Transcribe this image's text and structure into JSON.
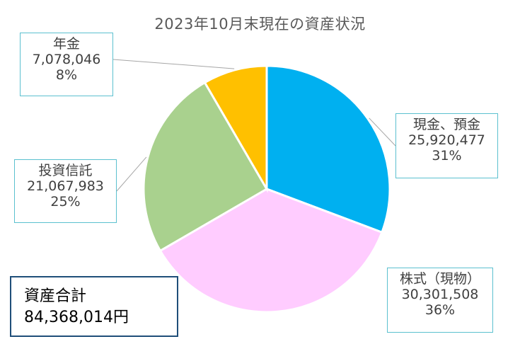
{
  "chart_data": {
    "type": "pie",
    "title": "2023年10月末現在の資産状況",
    "slices": [
      {
        "label": "現金、預金",
        "value": 25920477,
        "value_text": "25,920,477",
        "percent": "31%",
        "color": "#00b0f0"
      },
      {
        "label": "株式（現物）",
        "value": 30301508,
        "value_text": "30,301,508",
        "percent": "36%",
        "color": "#ffccff"
      },
      {
        "label": "投資信託",
        "value": 21067983,
        "value_text": "21,067,983",
        "percent": "25%",
        "color": "#a9d18e"
      },
      {
        "label": "年金",
        "value": 7078046,
        "value_text": "7,078,046",
        "percent": "8%",
        "color": "#ffc000"
      }
    ],
    "start": "12 o'clock",
    "direction": "clockwise"
  },
  "total_box": {
    "label": "資産合計",
    "value": "84,368,014円"
  }
}
